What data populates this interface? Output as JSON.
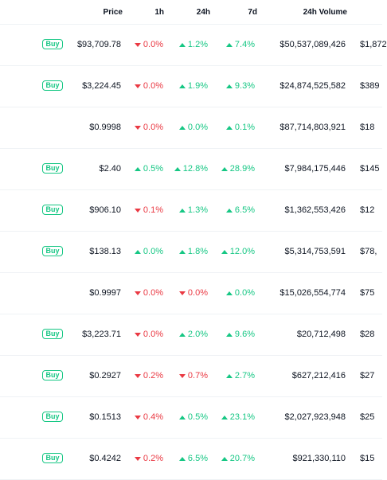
{
  "header": {
    "price": "Price",
    "h1": "1h",
    "h24": "24h",
    "d7": "7d",
    "volume": "24h Volume"
  },
  "buy_label": "Buy",
  "rows": [
    {
      "buy": true,
      "price": "$93,709.78",
      "h1": {
        "dir": "down",
        "v": "0.0%"
      },
      "h24": {
        "dir": "up",
        "v": "1.2%"
      },
      "d7": {
        "dir": "up",
        "v": "7.4%"
      },
      "volume": "$50,537,089,426",
      "mcap": "$1,872"
    },
    {
      "buy": true,
      "price": "$3,224.45",
      "h1": {
        "dir": "down",
        "v": "0.0%"
      },
      "h24": {
        "dir": "up",
        "v": "1.9%"
      },
      "d7": {
        "dir": "up",
        "v": "9.3%"
      },
      "volume": "$24,874,525,582",
      "mcap": "$389"
    },
    {
      "buy": false,
      "price": "$0.9998",
      "h1": {
        "dir": "down",
        "v": "0.0%"
      },
      "h24": {
        "dir": "up",
        "v": "0.0%"
      },
      "d7": {
        "dir": "up",
        "v": "0.1%"
      },
      "volume": "$87,714,803,921",
      "mcap": "$18"
    },
    {
      "buy": true,
      "price": "$2.40",
      "h1": {
        "dir": "up",
        "v": "0.5%"
      },
      "h24": {
        "dir": "up",
        "v": "12.8%"
      },
      "d7": {
        "dir": "up",
        "v": "28.9%"
      },
      "volume": "$7,984,175,446",
      "mcap": "$145"
    },
    {
      "buy": true,
      "price": "$906.10",
      "h1": {
        "dir": "down",
        "v": "0.1%"
      },
      "h24": {
        "dir": "up",
        "v": "1.3%"
      },
      "d7": {
        "dir": "up",
        "v": "6.5%"
      },
      "volume": "$1,362,553,426",
      "mcap": "$12"
    },
    {
      "buy": true,
      "price": "$138.13",
      "h1": {
        "dir": "up",
        "v": "0.0%"
      },
      "h24": {
        "dir": "up",
        "v": "1.8%"
      },
      "d7": {
        "dir": "up",
        "v": "12.0%"
      },
      "volume": "$5,314,753,591",
      "mcap": "$78,"
    },
    {
      "buy": false,
      "price": "$0.9997",
      "h1": {
        "dir": "down",
        "v": "0.0%"
      },
      "h24": {
        "dir": "down",
        "v": "0.0%"
      },
      "d7": {
        "dir": "up",
        "v": "0.0%"
      },
      "volume": "$15,026,554,774",
      "mcap": "$75"
    },
    {
      "buy": true,
      "price": "$3,223.71",
      "h1": {
        "dir": "down",
        "v": "0.0%"
      },
      "h24": {
        "dir": "up",
        "v": "2.0%"
      },
      "d7": {
        "dir": "up",
        "v": "9.6%"
      },
      "volume": "$20,712,498",
      "mcap": "$28"
    },
    {
      "buy": true,
      "price": "$0.2927",
      "h1": {
        "dir": "down",
        "v": "0.2%"
      },
      "h24": {
        "dir": "down",
        "v": "0.7%"
      },
      "d7": {
        "dir": "up",
        "v": "2.7%"
      },
      "volume": "$627,212,416",
      "mcap": "$27"
    },
    {
      "buy": true,
      "price": "$0.1513",
      "h1": {
        "dir": "down",
        "v": "0.4%"
      },
      "h24": {
        "dir": "up",
        "v": "0.5%"
      },
      "d7": {
        "dir": "up",
        "v": "23.1%"
      },
      "volume": "$2,027,923,948",
      "mcap": "$25"
    },
    {
      "buy": true,
      "price": "$0.4242",
      "h1": {
        "dir": "down",
        "v": "0.2%"
      },
      "h24": {
        "dir": "up",
        "v": "6.5%"
      },
      "d7": {
        "dir": "up",
        "v": "20.7%"
      },
      "volume": "$921,330,110",
      "mcap": "$15"
    }
  ],
  "colors": {
    "up": "#16c784",
    "down": "#ea3943",
    "text": "#0d1421",
    "border": "#eff2f5"
  }
}
